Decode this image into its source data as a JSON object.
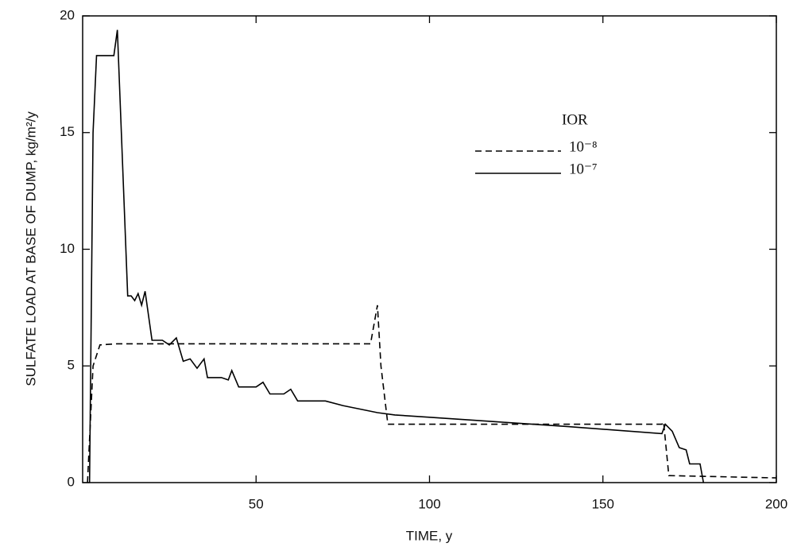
{
  "chart_data": {
    "type": "line",
    "x_label": "TIME, y",
    "y_label": "SULFATE LOAD AT BASE OF DUMP, kg/m²/y",
    "legend_title": "IOR",
    "xlim": [
      0,
      200
    ],
    "xticks": [
      50,
      100,
      150,
      200
    ],
    "ylim": [
      0,
      20
    ],
    "yticks": [
      0,
      5,
      10,
      15,
      20
    ],
    "series": [
      {
        "name": "10⁻⁸",
        "color": "#000000",
        "dashed": true,
        "x": [
          1.4,
          3,
          5,
          10,
          30,
          60,
          83,
          85,
          86,
          88,
          100,
          130,
          160,
          167,
          167.5,
          169,
          200
        ],
        "values": [
          0,
          5,
          5.9,
          5.95,
          5.95,
          5.95,
          5.95,
          7.6,
          5,
          2.5,
          2.5,
          2.5,
          2.5,
          2.5,
          2.6,
          0.3,
          0.2
        ]
      },
      {
        "name": "10⁻⁷",
        "color": "#000000",
        "dashed": false,
        "x": [
          2,
          3,
          4,
          9,
          10,
          13,
          14,
          15,
          16,
          17,
          18,
          20,
          23,
          25,
          27,
          29,
          31,
          33,
          35,
          36,
          40,
          42,
          43,
          45,
          50,
          52,
          54,
          58,
          60,
          62,
          70,
          75,
          85,
          90,
          100,
          120,
          140,
          167,
          168,
          170,
          172,
          174,
          175,
          178,
          179
        ],
        "values": [
          0,
          15,
          18.3,
          18.3,
          19.4,
          8,
          8,
          7.8,
          8.1,
          7.6,
          8.2,
          6.1,
          6.1,
          5.9,
          6.2,
          5.2,
          5.3,
          4.9,
          5.3,
          4.5,
          4.5,
          4.4,
          4.8,
          4.1,
          4.1,
          4.3,
          3.8,
          3.8,
          4,
          3.5,
          3.5,
          3.3,
          3,
          2.9,
          2.8,
          2.6,
          2.4,
          2.1,
          2.5,
          2.2,
          1.5,
          1.4,
          0.8,
          0.8,
          0
        ]
      }
    ]
  }
}
